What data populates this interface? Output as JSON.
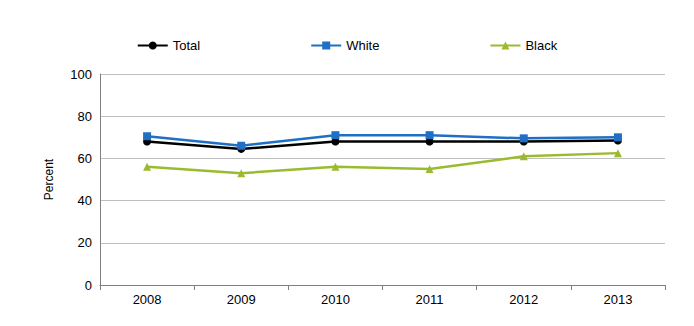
{
  "chart_data": {
    "type": "line",
    "categories": [
      "2008",
      "2009",
      "2010",
      "2011",
      "2012",
      "2013"
    ],
    "series": [
      {
        "name": "Total",
        "color": "#000000",
        "marker": "circle",
        "values": [
          68,
          64.5,
          68,
          68,
          68,
          68.5
        ]
      },
      {
        "name": "White",
        "color": "#1f6fc5",
        "marker": "square",
        "values": [
          70.5,
          66,
          71,
          71,
          69.5,
          70
        ]
      },
      {
        "name": "Black",
        "color": "#9bbb2f",
        "marker": "triangle",
        "values": [
          56,
          53,
          56,
          55,
          61,
          62.5
        ]
      }
    ],
    "y_label": "Percent",
    "ylim": [
      0,
      100
    ],
    "yticks": [
      0,
      20,
      40,
      60,
      80,
      100
    ],
    "grid": true,
    "legend": "top"
  }
}
